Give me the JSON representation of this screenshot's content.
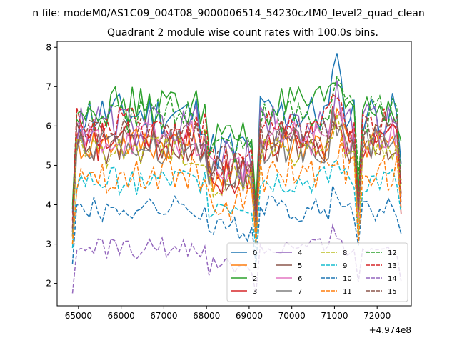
{
  "figure": {
    "suptitle": "n file: modeM0/AS1C09_004T08_9000006514_54230cztM0_level2_quad_clean",
    "title": "Quadrant 2 module wise count rates with 100.0s bins.",
    "offset_label": "+4.974e8"
  },
  "chart_data": {
    "type": "line",
    "x_offset_note": "x = x_value + 4.974e8",
    "xlim": [
      64500,
      72800
    ],
    "ylim": [
      1.43,
      8.15
    ],
    "xticks": [
      65000,
      66000,
      67000,
      68000,
      69000,
      70000,
      71000,
      72000
    ],
    "yticks": [
      2,
      3,
      4,
      5,
      6,
      7,
      8
    ],
    "x_start": 64860,
    "x_step": 100,
    "n_points": 78,
    "grid": false,
    "legend": {
      "placement": "lower-right",
      "columns": 4
    },
    "series": [
      {
        "name": "0",
        "color": "#1f77b4",
        "dash": "solid",
        "level": 6.3,
        "range": [
          3.8,
          7.85
        ]
      },
      {
        "name": "1",
        "color": "#ff7f0e",
        "dash": "solid",
        "level": 5.6,
        "range": [
          3.2,
          6.7
        ]
      },
      {
        "name": "2",
        "color": "#2ca02c",
        "dash": "solid",
        "level": 6.5,
        "range": [
          4.0,
          7.6
        ]
      },
      {
        "name": "3",
        "color": "#d62728",
        "dash": "solid",
        "level": 5.6,
        "range": [
          3.4,
          7.1
        ]
      },
      {
        "name": "4",
        "color": "#9467bd",
        "dash": "solid",
        "level": 6.0,
        "range": [
          3.3,
          7.2
        ]
      },
      {
        "name": "5",
        "color": "#8c564b",
        "dash": "solid",
        "level": 5.5,
        "range": [
          3.3,
          6.6
        ]
      },
      {
        "name": "6",
        "color": "#e377c2",
        "dash": "solid",
        "level": 5.7,
        "range": [
          3.4,
          6.8
        ]
      },
      {
        "name": "7",
        "color": "#7f7f7f",
        "dash": "solid",
        "level": 5.5,
        "range": [
          3.2,
          6.5
        ]
      },
      {
        "name": "8",
        "color": "#bcbd22",
        "dash": "dashed",
        "level": 5.4,
        "range": [
          3.0,
          6.3
        ]
      },
      {
        "name": "9",
        "color": "#17becf",
        "dash": "dashed",
        "level": 4.6,
        "range": [
          2.9,
          5.5
        ]
      },
      {
        "name": "10",
        "color": "#1f77b4",
        "dash": "dashed",
        "level": 3.9,
        "range": [
          2.5,
          4.8
        ]
      },
      {
        "name": "11",
        "color": "#ff7f0e",
        "dash": "dashed",
        "level": 4.8,
        "range": [
          3.0,
          6.6
        ]
      },
      {
        "name": "12",
        "color": "#2ca02c",
        "dash": "dashed",
        "level": 6.3,
        "range": [
          3.9,
          7.5
        ]
      },
      {
        "name": "13",
        "color": "#d62728",
        "dash": "dashed",
        "level": 6.0,
        "range": [
          3.6,
          7.3
        ]
      },
      {
        "name": "14",
        "color": "#9467bd",
        "dash": "dashed",
        "level": 2.9,
        "range": [
          1.75,
          3.7
        ]
      },
      {
        "name": "15",
        "color": "#8c564b",
        "dash": "dashed",
        "level": 5.8,
        "range": [
          3.4,
          6.6
        ]
      }
    ]
  }
}
